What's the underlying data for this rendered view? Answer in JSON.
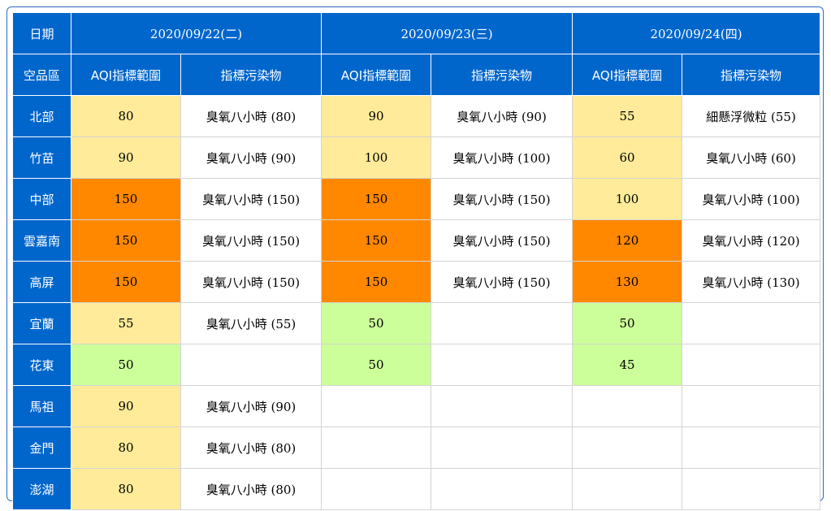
{
  "header": {
    "date_label": "日期",
    "area_label": "空品區",
    "aqi_col_label": "AQI指標範圍",
    "pollutant_col_label": "指標污染物",
    "dates": [
      "2020/09/22(二)",
      "2020/09/23(三)",
      "2020/09/24(四)"
    ]
  },
  "colors": {
    "header_blue": "#0066cc",
    "good_green": "#ccff99",
    "moderate_yellow": "#ffeb99",
    "sensitive_orange": "#ff8800"
  },
  "rows": [
    {
      "region": "北部",
      "days": [
        {
          "aqi": "80",
          "pollutant": "臭氧八小時 (80)",
          "level": "yellow"
        },
        {
          "aqi": "90",
          "pollutant": "臭氧八小時 (90)",
          "level": "yellow"
        },
        {
          "aqi": "55",
          "pollutant": "細懸浮微粒 (55)",
          "level": "yellow"
        }
      ]
    },
    {
      "region": "竹苗",
      "days": [
        {
          "aqi": "90",
          "pollutant": "臭氧八小時 (90)",
          "level": "yellow"
        },
        {
          "aqi": "100",
          "pollutant": "臭氧八小時 (100)",
          "level": "yellow"
        },
        {
          "aqi": "60",
          "pollutant": "臭氧八小時 (60)",
          "level": "yellow"
        }
      ]
    },
    {
      "region": "中部",
      "days": [
        {
          "aqi": "150",
          "pollutant": "臭氧八小時 (150)",
          "level": "orange"
        },
        {
          "aqi": "150",
          "pollutant": "臭氧八小時 (150)",
          "level": "orange"
        },
        {
          "aqi": "100",
          "pollutant": "臭氧八小時 (100)",
          "level": "yellow"
        }
      ]
    },
    {
      "region": "雲嘉南",
      "days": [
        {
          "aqi": "150",
          "pollutant": "臭氧八小時 (150)",
          "level": "orange"
        },
        {
          "aqi": "150",
          "pollutant": "臭氧八小時 (150)",
          "level": "orange"
        },
        {
          "aqi": "120",
          "pollutant": "臭氧八小時 (120)",
          "level": "orange"
        }
      ]
    },
    {
      "region": "高屏",
      "days": [
        {
          "aqi": "150",
          "pollutant": "臭氧八小時 (150)",
          "level": "orange"
        },
        {
          "aqi": "150",
          "pollutant": "臭氧八小時 (150)",
          "level": "orange"
        },
        {
          "aqi": "130",
          "pollutant": "臭氧八小時 (130)",
          "level": "orange"
        }
      ]
    },
    {
      "region": "宜蘭",
      "days": [
        {
          "aqi": "55",
          "pollutant": "臭氧八小時 (55)",
          "level": "yellow"
        },
        {
          "aqi": "50",
          "pollutant": "",
          "level": "green"
        },
        {
          "aqi": "50",
          "pollutant": "",
          "level": "green"
        }
      ]
    },
    {
      "region": "花東",
      "days": [
        {
          "aqi": "50",
          "pollutant": "",
          "level": "green"
        },
        {
          "aqi": "50",
          "pollutant": "",
          "level": "green"
        },
        {
          "aqi": "45",
          "pollutant": "",
          "level": "green"
        }
      ]
    },
    {
      "region": "馬祖",
      "days": [
        {
          "aqi": "90",
          "pollutant": "臭氧八小時 (90)",
          "level": "yellow"
        },
        {
          "aqi": "",
          "pollutant": "",
          "level": "none"
        },
        {
          "aqi": "",
          "pollutant": "",
          "level": "none"
        }
      ]
    },
    {
      "region": "金門",
      "days": [
        {
          "aqi": "80",
          "pollutant": "臭氧八小時 (80)",
          "level": "yellow"
        },
        {
          "aqi": "",
          "pollutant": "",
          "level": "none"
        },
        {
          "aqi": "",
          "pollutant": "",
          "level": "none"
        }
      ]
    },
    {
      "region": "澎湖",
      "days": [
        {
          "aqi": "80",
          "pollutant": "臭氧八小時 (80)",
          "level": "yellow"
        },
        {
          "aqi": "",
          "pollutant": "",
          "level": "none"
        },
        {
          "aqi": "",
          "pollutant": "",
          "level": "none"
        }
      ]
    }
  ]
}
